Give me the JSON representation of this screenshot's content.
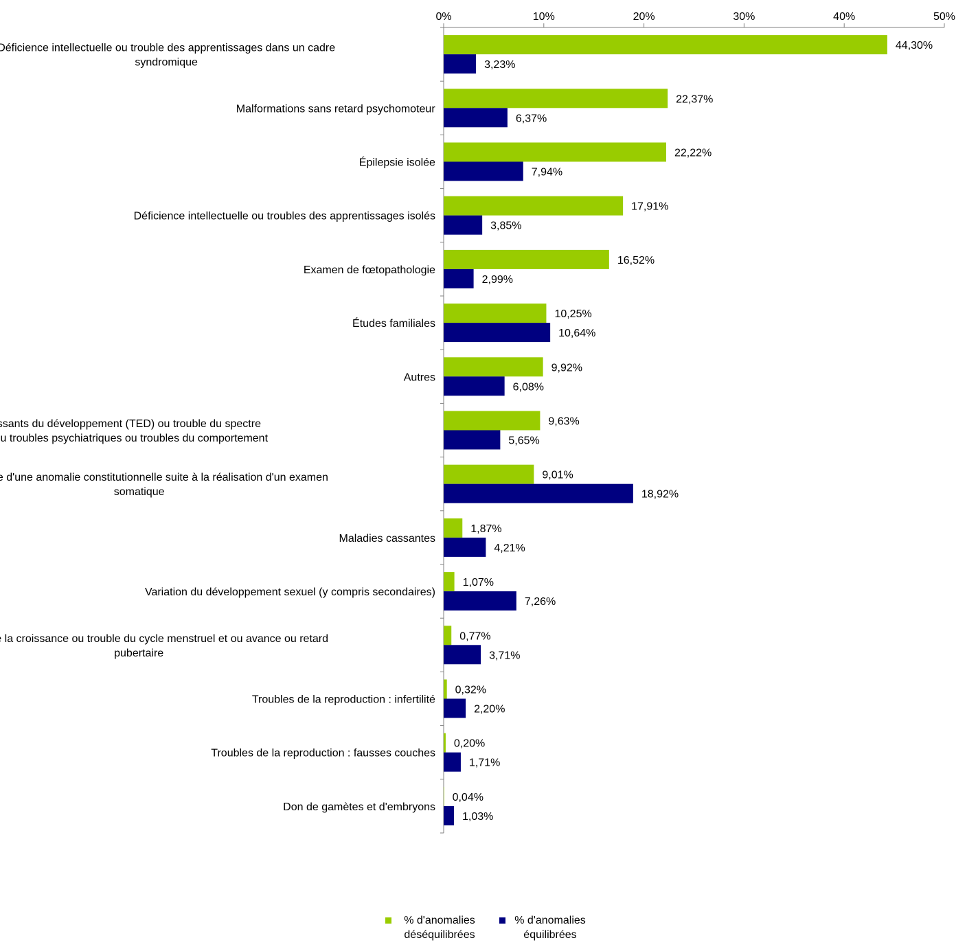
{
  "chart_data": {
    "type": "bar",
    "orientation": "horizontal",
    "categories": [
      "Déficience intellectuelle ou trouble des apprentissages dans un cadre syndromique",
      "Malformations sans retard psychomoteur",
      "Épilepsie isolée",
      "Déficience intellectuelle ou troubles des apprentissages isolés",
      "Examen de fœtopathologie",
      "Études familiales",
      "Autres",
      "Troubles envahissants du développement (TED) ou  trouble du spectre autistique (TSA) ou troubles psychiatriques ou troubles du comportement",
      "Recherche d'une anomalie constitutionnelle suite à la réalisation d'un examen somatique",
      "Maladies cassantes",
      "Variation du développement sexuel (y compris secondaires)",
      "Trouble de la croissance ou trouble du cycle menstruel et ou avance ou retard pubertaire",
      "Troubles de la reproduction : infertilité",
      "Troubles de la reproduction : fausses couches",
      "Don de gamètes et d'embryons"
    ],
    "category_lines": [
      [
        "Déficience intellectuelle ou trouble des apprentissages dans un cadre",
        "syndromique"
      ],
      [
        "Malformations sans retard psychomoteur"
      ],
      [
        "Épilepsie isolée"
      ],
      [
        "Déficience intellectuelle ou troubles des apprentissages isolés"
      ],
      [
        "Examen de fœtopathologie"
      ],
      [
        "Études familiales"
      ],
      [
        "Autres"
      ],
      [
        "Troubles envahissants du développement (TED) ou  trouble du spectre",
        "autistique (TSA) ou troubles psychiatriques ou troubles du comportement"
      ],
      [
        "Recherche d'une anomalie constitutionnelle suite à la réalisation d'un examen",
        "somatique"
      ],
      [
        "Maladies cassantes"
      ],
      [
        "Variation du développement sexuel (y compris secondaires)"
      ],
      [
        "Trouble de la croissance ou trouble du cycle menstruel et ou avance ou retard",
        "pubertaire"
      ],
      [
        "Troubles de la reproduction : infertilité"
      ],
      [
        "Troubles de la reproduction : fausses couches"
      ],
      [
        "Don de gamètes et d'embryons"
      ]
    ],
    "series": [
      {
        "name": "% d'anomalies déséquilibrées",
        "legend_lines": [
          "% d'anomalies",
          "déséquilibrées"
        ],
        "color": "#99CC00",
        "values": [
          44.3,
          22.37,
          22.22,
          17.91,
          16.52,
          10.25,
          9.92,
          9.63,
          9.01,
          1.87,
          1.07,
          0.77,
          0.32,
          0.2,
          0.04
        ],
        "labels": [
          "44,30%",
          "22,37%",
          "22,22%",
          "17,91%",
          "16,52%",
          "10,25%",
          "9,92%",
          "9,63%",
          "9,01%",
          "1,87%",
          "1,07%",
          "0,77%",
          "0,32%",
          "0,20%",
          "0,04%"
        ]
      },
      {
        "name": "% d'anomalies équilibrées",
        "legend_lines": [
          "% d'anomalies",
          "équilibrées"
        ],
        "color": "#000080",
        "values": [
          3.23,
          6.37,
          7.94,
          3.85,
          2.99,
          10.64,
          6.08,
          5.65,
          18.92,
          4.21,
          7.26,
          3.71,
          2.2,
          1.71,
          1.03
        ],
        "labels": [
          "3,23%",
          "6,37%",
          "7,94%",
          "3,85%",
          "2,99%",
          "10,64%",
          "6,08%",
          "5,65%",
          "18,92%",
          "4,21%",
          "7,26%",
          "3,71%",
          "2,20%",
          "1,71%",
          "1,03%"
        ]
      }
    ],
    "x_axis": {
      "position": "top",
      "range": [
        0,
        50
      ],
      "ticks": [
        0,
        10,
        20,
        30,
        40,
        50
      ],
      "tick_labels": [
        "0%",
        "10%",
        "20%",
        "30%",
        "40%",
        "50%"
      ]
    },
    "grid": false,
    "legend_position": "bottom-center",
    "title": "",
    "xlabel": "",
    "ylabel": ""
  }
}
